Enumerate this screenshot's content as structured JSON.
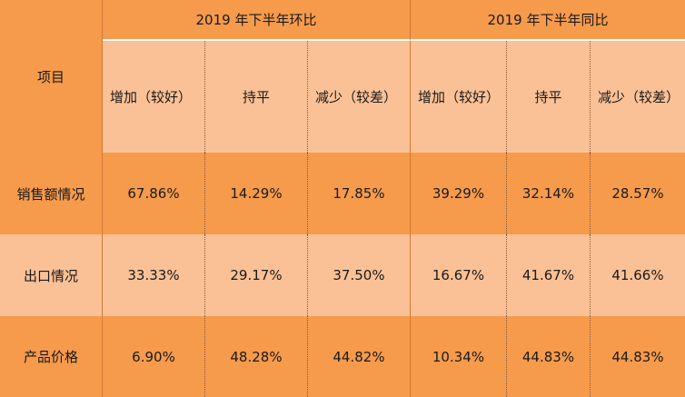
{
  "table": {
    "corner_label": "项目",
    "groups": [
      {
        "label": "2019 年下半年环比"
      },
      {
        "label": "2019 年下半年同比"
      }
    ],
    "sub_headers": [
      "增加（较好）",
      "持平",
      "减少（较差）",
      "增加（较好）",
      "持平",
      "减少（较差）"
    ],
    "rows": [
      {
        "label": "销售额情况",
        "values": [
          "67.86%",
          "14.29%",
          "17.85%",
          "39.29%",
          "32.14%",
          "28.57%"
        ]
      },
      {
        "label": "出口情况",
        "values": [
          "33.33%",
          "29.17%",
          "37.50%",
          "16.67%",
          "41.67%",
          "41.66%"
        ]
      },
      {
        "label": "产品价格",
        "values": [
          "6.90%",
          "48.28%",
          "44.82%",
          "10.34%",
          "44.83%",
          "44.83%"
        ]
      }
    ]
  },
  "colors": {
    "dark_orange": "#f69a4c",
    "light_peach": "#fbc196"
  }
}
